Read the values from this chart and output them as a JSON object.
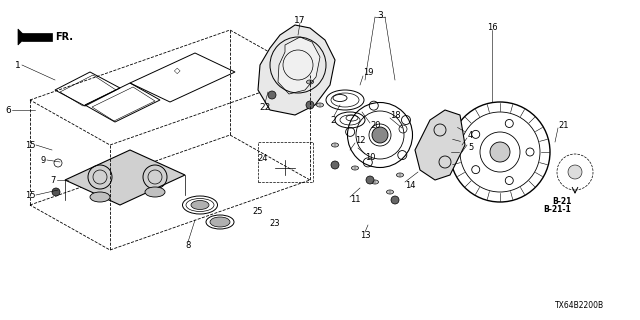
{
  "title": "",
  "diagram_id": "TX64B2200B",
  "bg_color": "#ffffff",
  "line_color": "#000000",
  "part_numbers": [
    1,
    2,
    3,
    4,
    5,
    6,
    7,
    8,
    9,
    10,
    11,
    12,
    13,
    14,
    15,
    16,
    17,
    18,
    19,
    20,
    21,
    22,
    23,
    24,
    25
  ],
  "reference_label": "B-21\nB-21-1",
  "direction_label": "FR.",
  "fig_width": 6.4,
  "fig_height": 3.2,
  "dpi": 100
}
